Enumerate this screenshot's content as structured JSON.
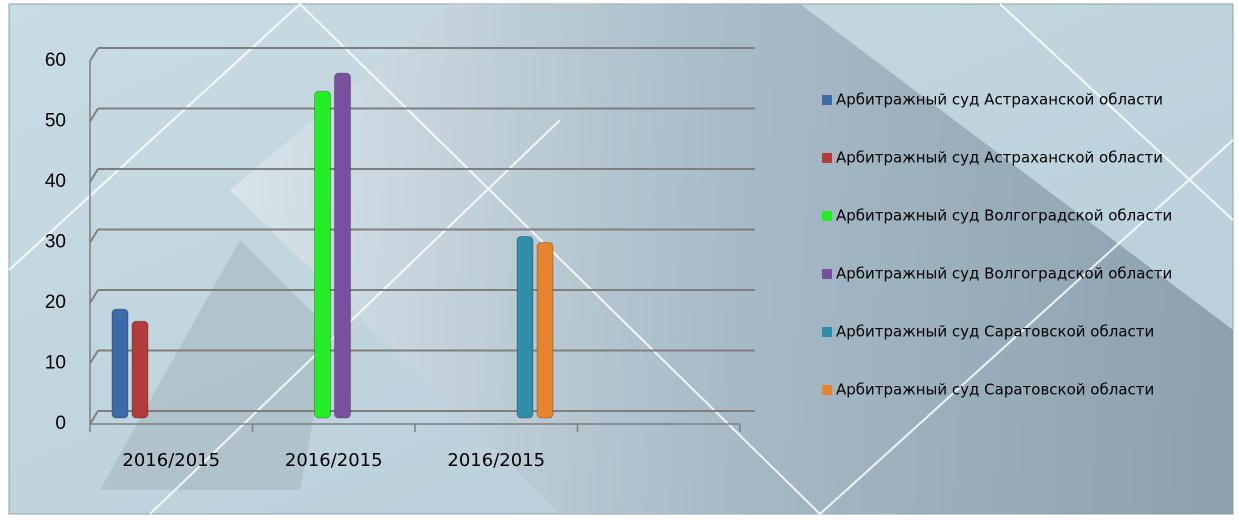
{
  "chart_data": {
    "type": "bar",
    "categories": [
      "2016/2015",
      "2016/2015",
      "2016/2015",
      null
    ],
    "series": [
      {
        "name": "Арбитражный суд Астраханской области",
        "color": "#3d6aa8",
        "values": [
          18,
          null,
          null,
          null
        ]
      },
      {
        "name": "Арбитражный суд Астраханской области",
        "color": "#b33b39",
        "values": [
          16,
          null,
          null,
          null
        ]
      },
      {
        "name": "Арбитражный суд Волгоградской области",
        "color": "#22ee22",
        "values": [
          null,
          54,
          null,
          null
        ]
      },
      {
        "name": "Арбитражный суд Волгоградской области",
        "color": "#7a4fa0",
        "values": [
          null,
          57,
          null,
          null
        ]
      },
      {
        "name": "Арбитражный суд Саратовской области",
        "color": "#2f8ea8",
        "values": [
          null,
          null,
          30,
          null
        ]
      },
      {
        "name": "Арбитражный суд Саратовской области",
        "color": "#e8832e",
        "values": [
          null,
          null,
          29,
          null
        ]
      }
    ],
    "ylim": [
      0,
      60
    ],
    "yticks": [
      0,
      10,
      20,
      30,
      40,
      50,
      60
    ],
    "grid": true,
    "legend": "right"
  }
}
